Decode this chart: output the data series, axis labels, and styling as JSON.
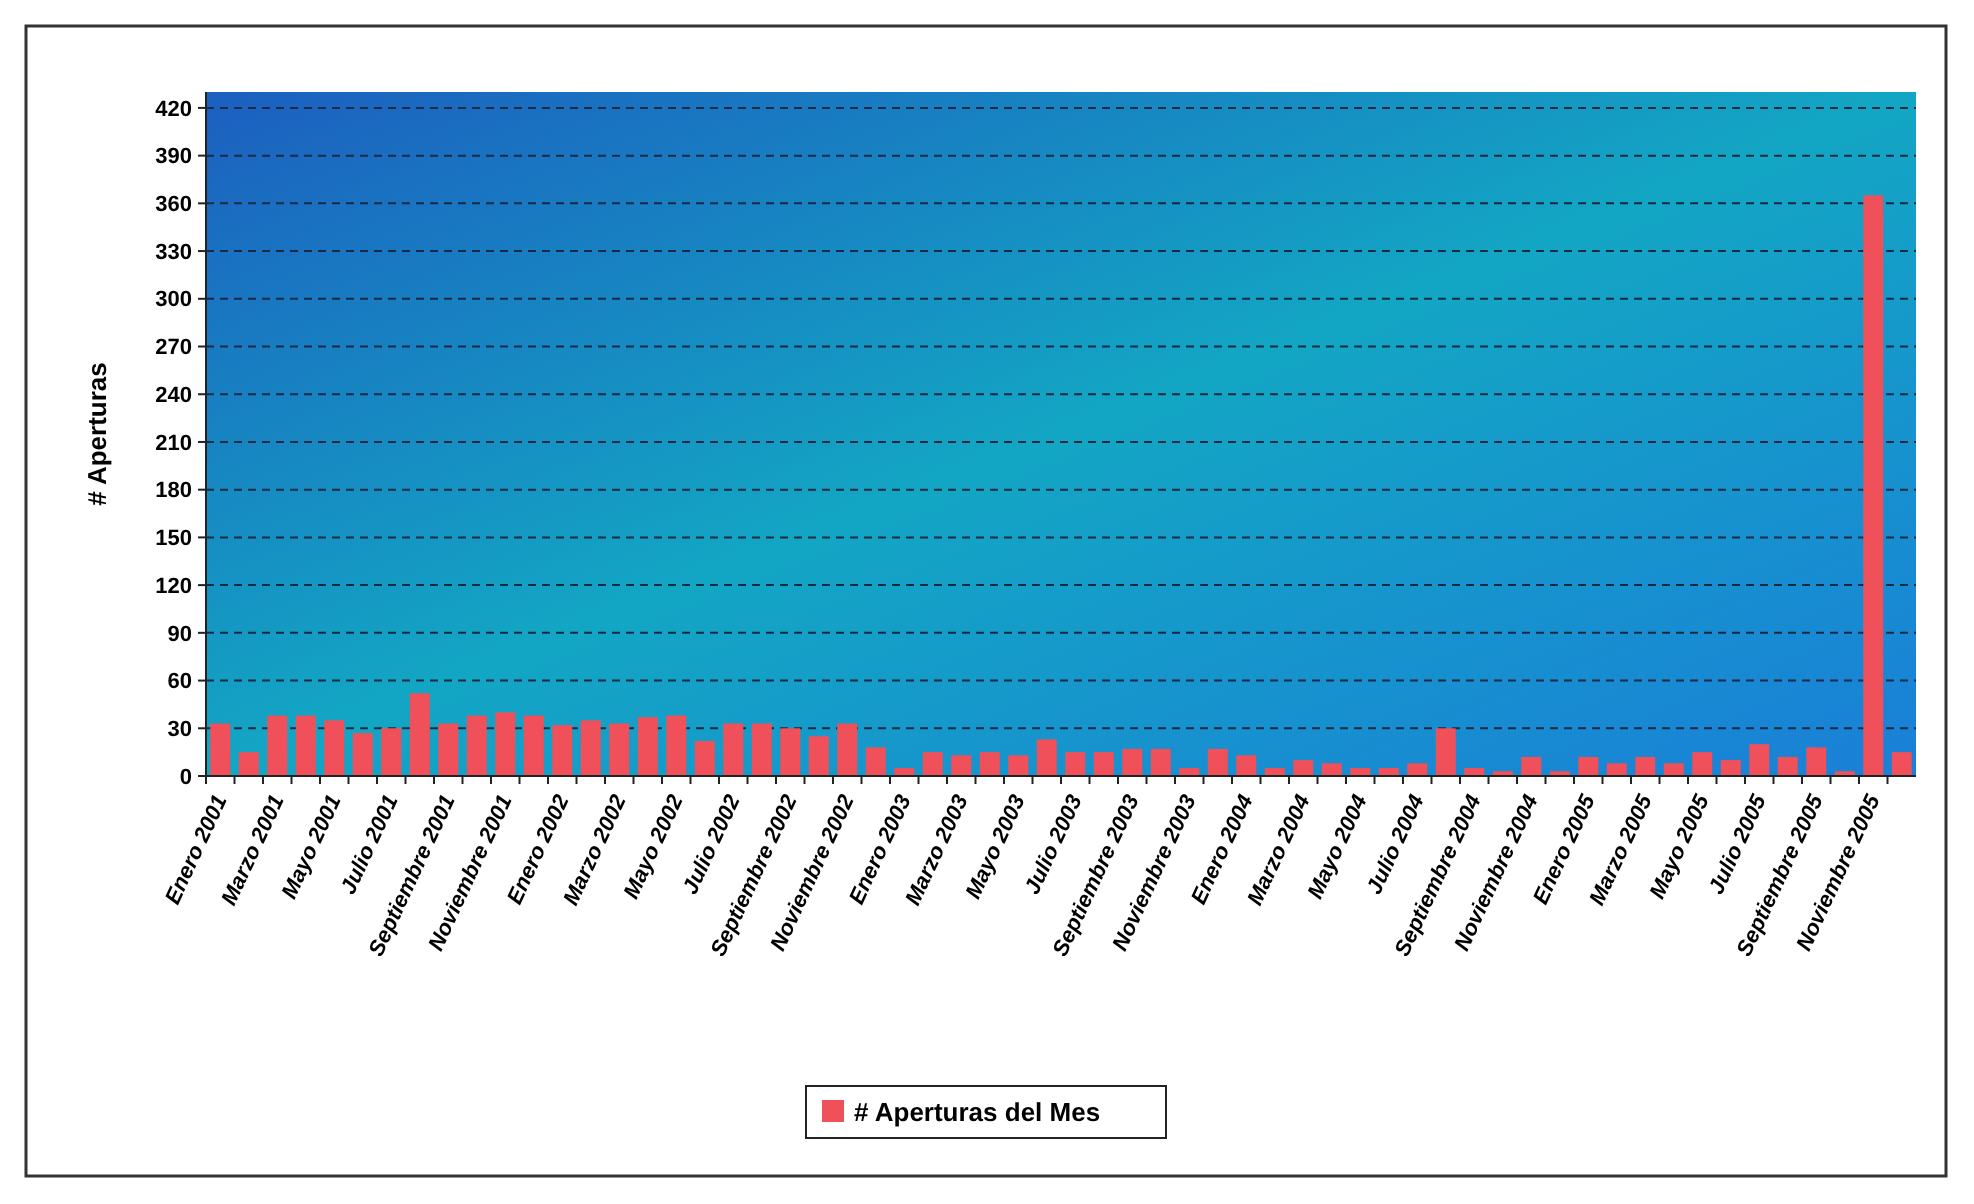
{
  "chart_data": {
    "type": "bar",
    "ylabel": "# Aperturas",
    "categories": [
      "Enero 2001",
      null,
      "Marzo 2001",
      null,
      "Mayo 2001",
      null,
      "Julio 2001",
      null,
      "Septiembre 2001",
      null,
      "Noviembre 2001",
      null,
      "Enero 2002",
      null,
      "Marzo 2002",
      null,
      "Mayo 2002",
      null,
      "Julio 2002",
      null,
      "Septiembre 2002",
      null,
      "Noviembre 2002",
      null,
      "Enero 2003",
      null,
      "Marzo 2003",
      null,
      "Mayo 2003",
      null,
      "Julio 2003",
      null,
      "Septiembre 2003",
      null,
      "Noviembre 2003",
      null,
      "Enero 2004",
      null,
      "Marzo 2004",
      null,
      "Mayo 2004",
      null,
      "Julio 2004",
      null,
      "Septiembre 2004",
      null,
      "Noviembre 2004",
      null,
      "Enero 2005",
      null,
      "Marzo 2005",
      null,
      "Mayo 2005",
      null,
      "Julio 2005",
      null,
      "Septiembre 2005",
      null,
      "Noviembre 2005",
      null
    ],
    "series": [
      {
        "name": "# Aperturas del Mes",
        "color": "#f0505a",
        "values": [
          33,
          15,
          38,
          38,
          35,
          27,
          30,
          52,
          33,
          38,
          40,
          38,
          32,
          35,
          33,
          37,
          38,
          22,
          33,
          33,
          30,
          25,
          33,
          18,
          5,
          15,
          13,
          15,
          13,
          23,
          15,
          15,
          17,
          17,
          5,
          17,
          13,
          5,
          10,
          8,
          5,
          5,
          8,
          30,
          5,
          3,
          12,
          3,
          12,
          8,
          12,
          8,
          15,
          10,
          20,
          12,
          18,
          3,
          365,
          15
        ]
      }
    ],
    "ylim": [
      0,
      430
    ],
    "yticks": [
      0,
      30,
      60,
      90,
      120,
      150,
      180,
      210,
      240,
      270,
      300,
      330,
      360,
      390,
      420
    ],
    "grid": "y",
    "legend": "bottom"
  }
}
